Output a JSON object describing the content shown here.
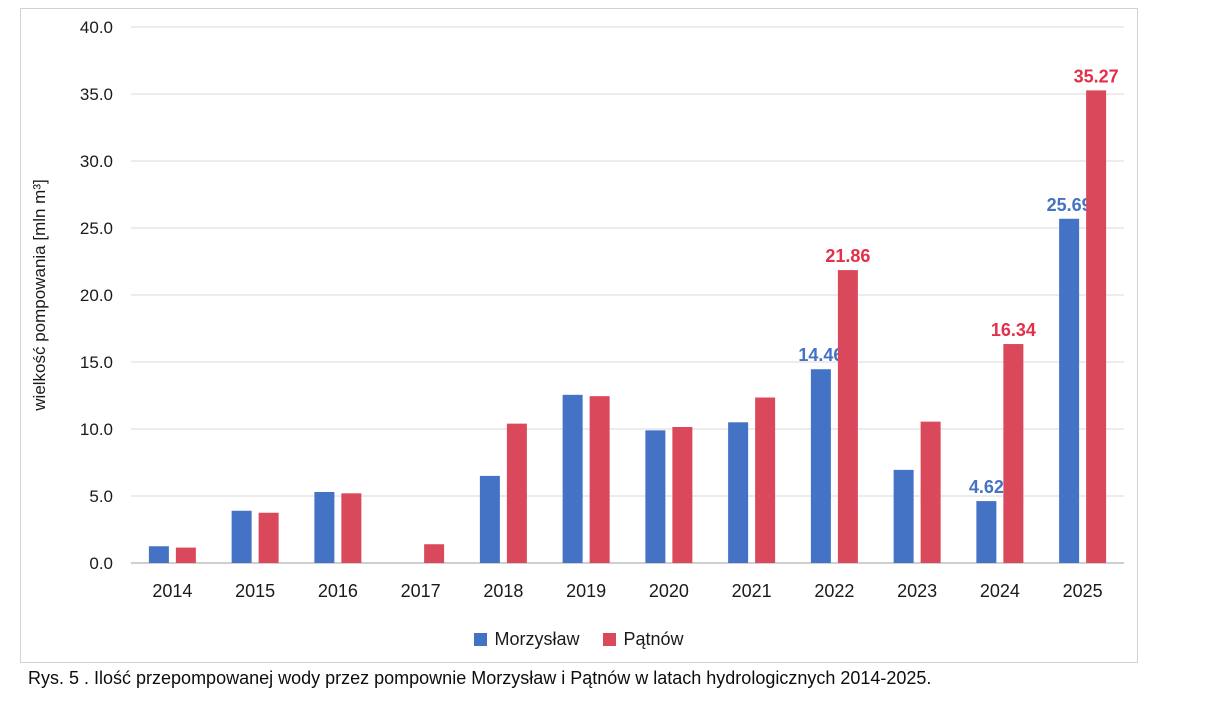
{
  "figure": {
    "caption": "Rys. 5 . Ilość przepompowanej wody przez pompownie Morzysław i Pątnów w latach hydrologicznych 2014-2025."
  },
  "chart_data": {
    "type": "bar",
    "title": "",
    "xlabel": "",
    "ylabel": "wielkość pompowania [mln m³]",
    "ylim": [
      0,
      40
    ],
    "ytick_step": 5,
    "yticks": [
      "0.0",
      "5.0",
      "10.0",
      "15.0",
      "20.0",
      "25.0",
      "30.0",
      "35.0",
      "40.0"
    ],
    "grid": true,
    "legend_position": "bottom",
    "categories": [
      "2014",
      "2015",
      "2016",
      "2017",
      "2018",
      "2019",
      "2020",
      "2021",
      "2022",
      "2023",
      "2024",
      "2025"
    ],
    "series": [
      {
        "id": "morzyslaw",
        "name": "Morzysław",
        "color": "#4472c4",
        "label_color": "#4472c4",
        "values": [
          1.25,
          3.9,
          5.3,
          0,
          6.5,
          12.55,
          9.9,
          10.5,
          14.46,
          6.95,
          4.62,
          25.69
        ],
        "data_labels": [
          null,
          null,
          null,
          null,
          null,
          null,
          null,
          null,
          "14.46",
          null,
          "4.62",
          "25.69"
        ]
      },
      {
        "id": "patnow",
        "name": "Pątnów",
        "color": "#d9495b",
        "label_color": "#e2304a",
        "values": [
          1.15,
          3.75,
          5.2,
          1.4,
          10.4,
          12.45,
          10.15,
          12.35,
          21.86,
          10.55,
          16.34,
          35.27
        ],
        "data_labels": [
          null,
          null,
          null,
          null,
          null,
          null,
          null,
          null,
          "21.86",
          null,
          "16.34",
          "35.27"
        ]
      }
    ],
    "colors": {
      "gridline": "#d9d9d9",
      "axis_line": "#bfbfbf",
      "tick_text": "#1a1a1a"
    }
  }
}
